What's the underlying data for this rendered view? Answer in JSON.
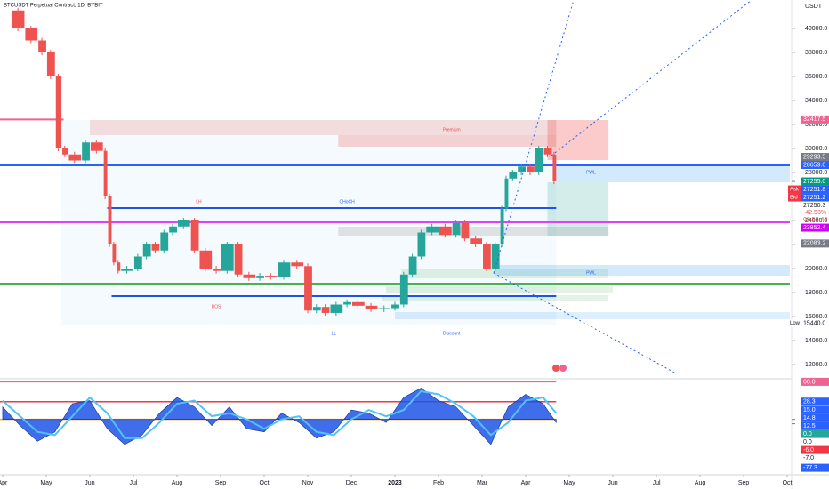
{
  "header": {
    "symbol": "BTCUSDT Perpetual Contract, 1D, BYBIT",
    "currency": "USDT"
  },
  "chart_data": [
    {
      "type": "candle-line",
      "x": [
        0.2,
        0.5,
        0.8,
        1.0,
        1.2,
        1.35,
        1.5,
        1.8,
        2.0,
        2.3,
        2.4,
        2.5,
        2.6,
        2.7,
        3.0,
        3.2,
        3.4,
        3.6,
        3.8,
        4.0,
        4.3,
        4.5,
        4.8,
        5.0,
        5.3,
        5.5,
        5.8,
        6.0,
        6.3,
        6.6,
        6.9,
        7.1,
        7.3,
        7.5,
        7.8,
        8.0,
        8.3,
        8.6,
        8.9,
        9.1,
        9.3,
        9.5,
        9.7,
        10.0,
        10.3,
        10.5,
        10.7,
        11.0,
        11.2,
        11.4,
        11.5,
        11.6,
        11.8,
        12.0,
        12.2,
        12.4,
        12.6,
        12.7
      ],
      "values": [
        41500,
        40000,
        39000,
        38000,
        36000,
        30000,
        29500,
        29000,
        30500,
        29800,
        26000,
        22000,
        20500,
        19800,
        20000,
        21000,
        22000,
        21500,
        23000,
        23500,
        24000,
        21500,
        20000,
        19800,
        22000,
        19500,
        19200,
        19400,
        19300,
        20500,
        20200,
        16500,
        16800,
        16300,
        17000,
        17200,
        16900,
        16600,
        16700,
        17000,
        19500,
        21000,
        23000,
        23500,
        22800,
        23800,
        22500,
        22000,
        20000,
        22000,
        25000,
        27500,
        28000,
        28500,
        28000,
        30000,
        29500,
        27251
      ],
      "colors": {
        "up": "#26a69a",
        "down": "#ef5350"
      },
      "xlim": [
        -0.06,
        18.06
      ],
      "xticks": [
        {
          "value": 0,
          "label": "Apr"
        },
        {
          "value": 1,
          "label": "May"
        },
        {
          "value": 2,
          "label": "Jun"
        },
        {
          "value": 3,
          "label": "Jul"
        },
        {
          "value": 4,
          "label": "Aug"
        },
        {
          "value": 5,
          "label": "Sep"
        },
        {
          "value": 6,
          "label": "Oct"
        },
        {
          "value": 7,
          "label": "Nov"
        },
        {
          "value": 8,
          "label": "Dec"
        },
        {
          "value": 9,
          "label": "2023"
        },
        {
          "value": 10,
          "label": "Feb"
        },
        {
          "value": 11,
          "label": "Mar"
        },
        {
          "value": 12,
          "label": "Apr"
        },
        {
          "value": 13,
          "label": "May"
        },
        {
          "value": 14,
          "label": "Jun"
        },
        {
          "value": 15,
          "label": "Jul"
        },
        {
          "value": 16,
          "label": "Aug"
        },
        {
          "value": 17,
          "label": "Sep"
        },
        {
          "value": 18,
          "label": "Oct"
        }
      ],
      "ylim": [
        10889,
        42370
      ],
      "yticks": [
        {
          "value": 12000,
          "label": "12000.0"
        },
        {
          "value": 14000,
          "label": "14000.0"
        },
        {
          "value": 16000,
          "label": "16000.0"
        },
        {
          "value": 18000,
          "label": "18000.0"
        },
        {
          "value": 20000,
          "label": "20000.0"
        },
        {
          "value": 22000,
          "label": "22000.0"
        },
        {
          "value": 24000,
          "label": "24000.0"
        },
        {
          "value": 26000,
          "label": "26000.0"
        },
        {
          "value": 28000,
          "label": "28000.0"
        },
        {
          "value": 30000,
          "label": "30000.0"
        },
        {
          "value": 32000,
          "label": "32000.0"
        },
        {
          "value": 34000,
          "label": "34000.0"
        },
        {
          "value": 36000,
          "label": "36000.0"
        },
        {
          "value": 38000,
          "label": "38000.0"
        },
        {
          "value": 40000,
          "label": "40000.0"
        }
      ],
      "zones": [
        {
          "x": [
            1.35,
            12.7
          ],
          "y": [
            15333,
            32370
          ],
          "color": "rgba(33,150,243,0.05)"
        },
        {
          "x": [
            2.0,
            12.7
          ],
          "y": [
            31111,
            32370
          ],
          "color": "rgba(239,83,80,0.18)"
        },
        {
          "x": [
            7.7,
            12.7
          ],
          "y": [
            30148,
            31111
          ],
          "color": "rgba(239,83,80,0.25)"
        },
        {
          "x": [
            12.5,
            13.9
          ],
          "y": [
            29037,
            32370
          ],
          "color": "rgba(239,83,80,0.3)"
        },
        {
          "x": [
            12.5,
            13.9
          ],
          "y": [
            22740,
            27185
          ],
          "color": "rgba(38,166,154,0.2)"
        },
        {
          "x": [
            12.7,
            18.06
          ],
          "y": [
            27185,
            28593
          ],
          "color": "rgba(33,150,243,0.2)"
        },
        {
          "x": [
            7.7,
            13.9
          ],
          "y": [
            22740,
            23481
          ],
          "color": "rgba(150,150,150,0.25)"
        },
        {
          "x": [
            9.0,
            18.06
          ],
          "y": [
            15777,
            16370
          ],
          "color": "rgba(33,150,243,0.15)"
        },
        {
          "x": [
            9.15,
            13.9
          ],
          "y": [
            19185,
            19925
          ],
          "color": "rgba(76,175,80,0.15)"
        },
        {
          "x": [
            8.8,
            14.0
          ],
          "y": [
            17925,
            18518
          ],
          "color": "rgba(76,175,80,0.15)"
        },
        {
          "x": [
            8.7,
            13.9
          ],
          "y": [
            17333,
            17777
          ],
          "color": "rgba(76,175,80,0.15)"
        },
        {
          "x": [
            11.3,
            18.06
          ],
          "y": [
            19407,
            20296
          ],
          "color": "rgba(33,150,243,0.2)"
        }
      ],
      "levels": [
        {
          "value": 28593,
          "x": [
            -0.06,
            18.06
          ],
          "color": "#2962ff"
        },
        {
          "value": 23852.4,
          "x": [
            -0.06,
            18.06
          ],
          "color": "#e040fb"
        },
        {
          "value": 18740,
          "x": [
            -0.06,
            18.06
          ],
          "color": "#4caf50"
        },
        {
          "value": 32417.5,
          "x": [
            -0.06,
            1.4
          ],
          "color": "#f06292"
        },
        {
          "value": 25037,
          "x": [
            2.4,
            12.7
          ],
          "color": "#1e53e5"
        },
        {
          "value": 17700,
          "x": [
            2.5,
            12.7
          ],
          "color": "#1e53e5"
        }
      ],
      "annotations": [
        {
          "text": "Premium",
          "x": 10.3,
          "y": 31555,
          "color": "#ef5350"
        },
        {
          "text": "Discount",
          "x": 10.3,
          "y": 14592,
          "color": "#2962ff"
        },
        {
          "text": "CHoCH",
          "x": 7.9,
          "y": 25550,
          "color": "#2962ff"
        },
        {
          "text": "LH",
          "x": 4.5,
          "y": 25550,
          "color": "#ef5350"
        },
        {
          "text": "BOS",
          "x": 4.9,
          "y": 16815,
          "color": "#ef5350"
        },
        {
          "text": "LL",
          "x": 7.6,
          "y": 14592,
          "color": "#2962ff"
        },
        {
          "text": "PWL",
          "x": 13.5,
          "y": 28000,
          "color": "#2962ff"
        },
        {
          "text": "PWL",
          "x": 13.5,
          "y": 19600,
          "color": "#2962ff"
        }
      ],
      "price_tags": [
        {
          "value": 32417.5,
          "label": "32417.5",
          "color": "#f06292"
        },
        {
          "value": 29293.5,
          "label": "29293.5",
          "color": "#787b86"
        },
        {
          "value": 28659.0,
          "label": "28659.0",
          "color": "#2962ff"
        },
        {
          "value": 27255.0,
          "label": "27255.0",
          "color": "#089981"
        },
        {
          "value": 27251.8,
          "label": "27251.8",
          "color": "#2962ff",
          "prefix": "Ask"
        },
        {
          "value": 27251.2,
          "label": "27251.2",
          "color": "#2962ff",
          "prefix": "Bid"
        },
        {
          "value": 27250.3,
          "label": "27250.3",
          "color": "none",
          "lines": [
            "-42.53%",
            "03:53:42"
          ]
        },
        {
          "value": 23852.4,
          "label": "23852.4",
          "color": "#d500f9"
        },
        {
          "value": 22083.2,
          "label": "22083.2",
          "color": "#787b86"
        },
        {
          "value": 15440.0,
          "label": "15440.0",
          "color": "none",
          "prefix": "Low"
        }
      ]
    },
    {
      "type": "area",
      "x": [
        0,
        0.4,
        0.8,
        1.2,
        1.6,
        2.0,
        2.4,
        2.8,
        3.2,
        3.6,
        4.0,
        4.4,
        4.8,
        5.2,
        5.6,
        6.0,
        6.4,
        6.8,
        7.2,
        7.6,
        8.0,
        8.4,
        8.8,
        9.2,
        9.6,
        10.0,
        10.4,
        10.8,
        11.2,
        11.6,
        12.0,
        12.4,
        12.7
      ],
      "values": [
        20,
        -10,
        -35,
        -20,
        25,
        30,
        -15,
        -40,
        -25,
        10,
        35,
        20,
        -10,
        20,
        -15,
        -20,
        10,
        -5,
        -30,
        -20,
        15,
        10,
        -5,
        35,
        50,
        30,
        20,
        -10,
        -40,
        20,
        40,
        25,
        -5
      ],
      "color": "#1e53e5",
      "signal": {
        "values": [
          30,
          5,
          -20,
          -25,
          5,
          35,
          10,
          -30,
          -30,
          -5,
          25,
          30,
          5,
          10,
          0,
          -15,
          0,
          5,
          -20,
          -25,
          0,
          15,
          5,
          15,
          45,
          40,
          25,
          5,
          -25,
          -5,
          30,
          35,
          10
        ],
        "color": "#4fc3f7"
      },
      "ylim": [
        -80,
        62
      ],
      "levels": [
        {
          "value": 60,
          "color": "#f06292"
        },
        {
          "value": 28.3,
          "color": "#f23645"
        },
        {
          "value": 0,
          "color": "#f9a825"
        }
      ],
      "price_tags": [
        {
          "value": 60.0,
          "label": "60.0",
          "color": "#f06292"
        },
        {
          "value": 28.3,
          "label": "28.3",
          "color": "#2962ff"
        },
        {
          "value": 15.0,
          "label": "15.0",
          "color": "#2962ff"
        },
        {
          "value": 14.8,
          "label": "14.8",
          "color": "#2962ff"
        },
        {
          "value": 12.5,
          "label": "12.5",
          "color": "#2962ff"
        },
        {
          "value": 0.0,
          "label": "0.0",
          "color": "#26a69a"
        },
        {
          "value": 0.0,
          "label": "0.0",
          "color": "none"
        },
        {
          "value": -6.0,
          "label": "-6.0",
          "color": "#f23645"
        },
        {
          "value": -7.0,
          "label": "-7.0",
          "color": "none"
        },
        {
          "value": -77.3,
          "label": "-77.3",
          "color": "#2962ff"
        }
      ]
    }
  ]
}
